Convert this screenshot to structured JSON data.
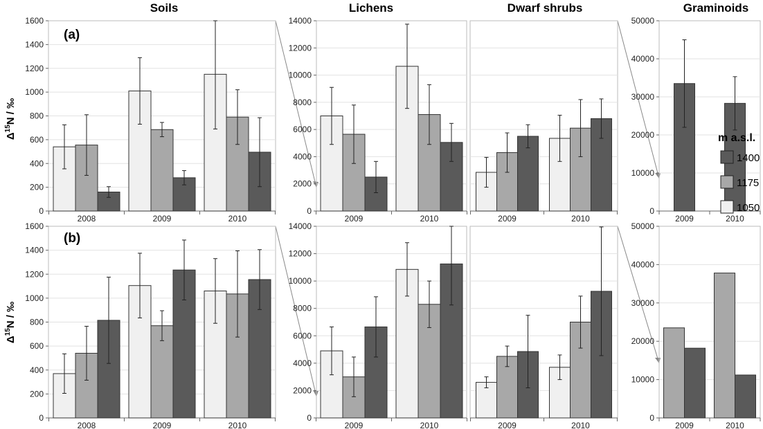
{
  "titles": [
    "Soils",
    "Lichens",
    "Dwarf shrubs",
    "Graminoids"
  ],
  "ylabel": {
    "delta": "Δ",
    "sup": "15",
    "rest": "N / ‰"
  },
  "legend": {
    "title": "m a.s.l.",
    "items": [
      {
        "label": "1400",
        "color": "#5a5a5a"
      },
      {
        "label": "1175",
        "color": "#a8a8a8"
      },
      {
        "label": "1050",
        "color": "#f0f0f0"
      }
    ]
  },
  "chart_data": [
    {
      "row": "(a)",
      "panel": "Soils",
      "type": "bar",
      "categories": [
        "2008",
        "2009",
        "2010"
      ],
      "ylim": [
        0,
        1600
      ],
      "yticks": [
        0,
        200,
        400,
        600,
        800,
        1000,
        1200,
        1400,
        1600
      ],
      "series": [
        {
          "name": "1050",
          "values": [
            540,
            1010,
            1150
          ],
          "errors": [
            185,
            280,
            460
          ]
        },
        {
          "name": "1175",
          "values": [
            555,
            685,
            790
          ],
          "errors": [
            255,
            60,
            230
          ]
        },
        {
          "name": "1400",
          "values": [
            160,
            280,
            495
          ],
          "errors": [
            45,
            60,
            290
          ]
        }
      ]
    },
    {
      "row": "(a)",
      "panel": "Lichens",
      "type": "bar",
      "categories": [
        "2009",
        "2010"
      ],
      "ylim": [
        0,
        14000
      ],
      "yticks": [
        0,
        2000,
        4000,
        6000,
        8000,
        10000,
        12000,
        14000
      ],
      "series": [
        {
          "name": "1050",
          "values": [
            7000,
            10650
          ],
          "errors": [
            2100,
            3100
          ]
        },
        {
          "name": "1175",
          "values": [
            5650,
            7100
          ],
          "errors": [
            2150,
            2200
          ]
        },
        {
          "name": "1400",
          "values": [
            2500,
            5050
          ],
          "errors": [
            1150,
            1400
          ]
        }
      ]
    },
    {
      "row": "(a)",
      "panel": "Dwarf shrubs",
      "type": "bar",
      "categories": [
        "2009",
        "2010"
      ],
      "ylim": [
        0,
        14000
      ],
      "series": [
        {
          "name": "1050",
          "values": [
            2850,
            5350
          ],
          "errors": [
            1100,
            1700
          ]
        },
        {
          "name": "1175",
          "values": [
            4300,
            6100
          ],
          "errors": [
            1450,
            2100
          ]
        },
        {
          "name": "1400",
          "values": [
            5500,
            6800
          ],
          "errors": [
            850,
            1450
          ]
        }
      ]
    },
    {
      "row": "(a)",
      "panel": "Graminoids",
      "type": "bar",
      "categories": [
        "2009",
        "2010"
      ],
      "ylim": [
        0,
        50000
      ],
      "yticks": [
        0,
        10000,
        20000,
        30000,
        40000,
        50000
      ],
      "series": [
        {
          "name": "1400",
          "values": [
            33500,
            28300
          ],
          "errors": [
            11500,
            7000
          ]
        }
      ]
    },
    {
      "row": "(b)",
      "panel": "Soils",
      "type": "bar",
      "categories": [
        "2008",
        "2009",
        "2010"
      ],
      "ylim": [
        0,
        1600
      ],
      "yticks": [
        0,
        200,
        400,
        600,
        800,
        1000,
        1200,
        1400,
        1600
      ],
      "series": [
        {
          "name": "1050",
          "values": [
            370,
            1105,
            1060
          ],
          "errors": [
            165,
            270,
            270
          ]
        },
        {
          "name": "1175",
          "values": [
            540,
            770,
            1035
          ],
          "errors": [
            225,
            125,
            360
          ]
        },
        {
          "name": "1400",
          "values": [
            815,
            1235,
            1155
          ],
          "errors": [
            360,
            250,
            250
          ]
        }
      ]
    },
    {
      "row": "(b)",
      "panel": "Lichens",
      "type": "bar",
      "categories": [
        "2009",
        "2010"
      ],
      "ylim": [
        0,
        14000
      ],
      "yticks": [
        0,
        2000,
        4000,
        6000,
        8000,
        10000,
        12000,
        14000
      ],
      "series": [
        {
          "name": "1050",
          "values": [
            4900,
            10850
          ],
          "errors": [
            1750,
            1950
          ]
        },
        {
          "name": "1175",
          "values": [
            3000,
            8300
          ],
          "errors": [
            1450,
            1700
          ]
        },
        {
          "name": "1400",
          "values": [
            6650,
            11250
          ],
          "errors": [
            2200,
            3000
          ]
        }
      ]
    },
    {
      "row": "(b)",
      "panel": "Dwarf shrubs",
      "type": "bar",
      "categories": [
        "2009",
        "2010"
      ],
      "ylim": [
        0,
        14000
      ],
      "series": [
        {
          "name": "1050",
          "values": [
            2600,
            3700
          ],
          "errors": [
            400,
            900
          ]
        },
        {
          "name": "1175",
          "values": [
            4500,
            7000
          ],
          "errors": [
            750,
            1900
          ]
        },
        {
          "name": "1400",
          "values": [
            4850,
            9250
          ],
          "errors": [
            2650,
            4700
          ]
        }
      ]
    },
    {
      "row": "(b)",
      "panel": "Graminoids",
      "type": "bar",
      "categories": [
        "2009",
        "2010"
      ],
      "ylim": [
        0,
        50000
      ],
      "yticks": [
        0,
        10000,
        20000,
        30000,
        40000,
        50000
      ],
      "series": [
        {
          "name": "1175",
          "values": [
            23500,
            37800
          ]
        },
        {
          "name": "1400",
          "values": [
            18200,
            11200
          ]
        }
      ]
    }
  ]
}
